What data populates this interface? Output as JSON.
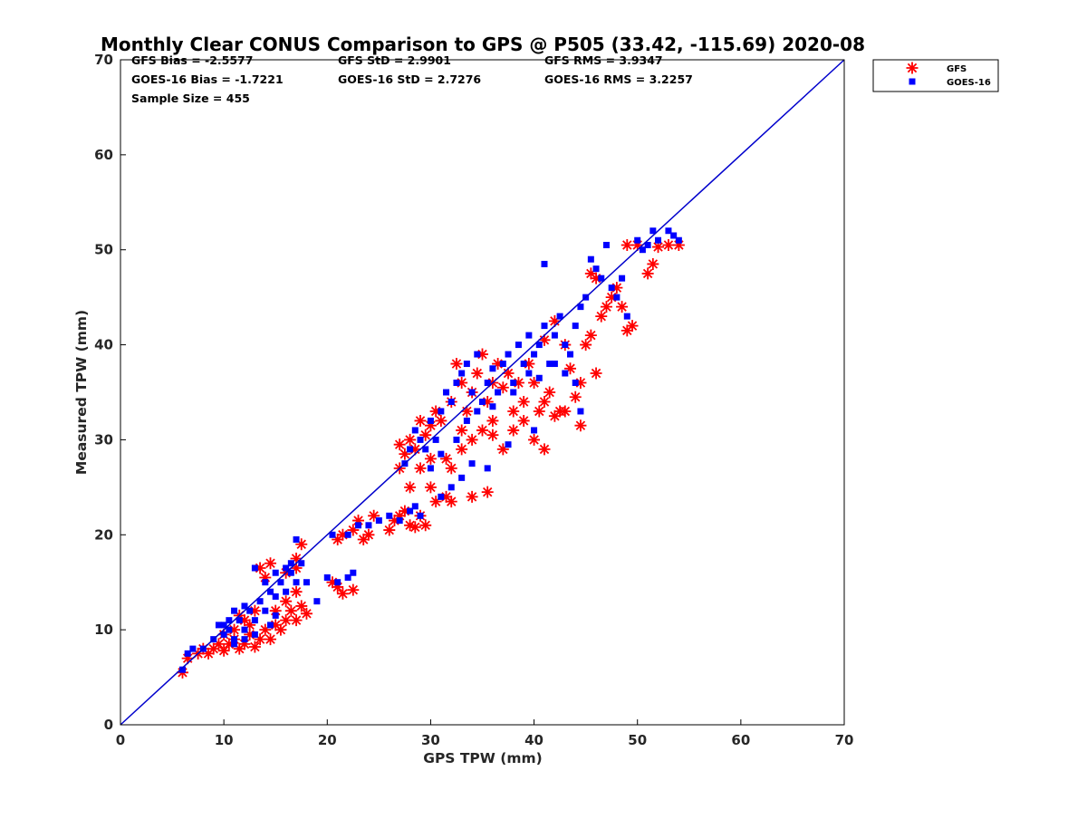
{
  "chart_data": {
    "type": "scatter",
    "title": "Monthly Clear CONUS Comparison to GPS @ P505 (33.42, -115.69) 2020-08",
    "xlabel": "GPS TPW (mm)",
    "ylabel": "Measured TPW (mm)",
    "xlim": [
      0,
      70
    ],
    "ylim": [
      0,
      70
    ],
    "xticks": [
      "0",
      "10",
      "20",
      "30",
      "40",
      "50",
      "60",
      "70"
    ],
    "yticks": [
      "0",
      "10",
      "20",
      "30",
      "40",
      "50",
      "60",
      "70"
    ],
    "grid": false,
    "legend_position": "top-right",
    "stats": {
      "gfs_bias": "GFS Bias = -2.5577",
      "goes_bias": "GOES-16 Bias = -1.7221",
      "sample_size": "Sample Size = 455",
      "gfs_std": "GFS StD = 2.9901",
      "goes_std": "GOES-16 StD = 2.7276",
      "gfs_rms": "GFS RMS = 3.9347",
      "goes_rms": "GOES-16 RMS = 3.2257"
    },
    "reference_line": {
      "x": [
        0,
        70
      ],
      "y": [
        0,
        70
      ],
      "color": "#0000cc"
    },
    "series": [
      {
        "name": "GFS",
        "marker": "asterisk",
        "color": "#ff0000",
        "points": [
          [
            6,
            5.5
          ],
          [
            6.5,
            7
          ],
          [
            7.5,
            7.5
          ],
          [
            8,
            8
          ],
          [
            8.5,
            7.5
          ],
          [
            9,
            8
          ],
          [
            9.5,
            8.5
          ],
          [
            10,
            7.8
          ],
          [
            10.5,
            8.5
          ],
          [
            11,
            9
          ],
          [
            11.5,
            8
          ],
          [
            12,
            8.5
          ],
          [
            12.5,
            9.5
          ],
          [
            13,
            8.2
          ],
          [
            13.5,
            9
          ],
          [
            14,
            10
          ],
          [
            14.5,
            9
          ],
          [
            15,
            10.5
          ],
          [
            15.5,
            10
          ],
          [
            16,
            11
          ],
          [
            16.5,
            12
          ],
          [
            17,
            11
          ],
          [
            17.5,
            12.5
          ],
          [
            18,
            11.7
          ],
          [
            16,
            13
          ],
          [
            17,
            14
          ],
          [
            14,
            15.5
          ],
          [
            13.5,
            16.5
          ],
          [
            14.5,
            17
          ],
          [
            16,
            16
          ],
          [
            17,
            17.5
          ],
          [
            17.5,
            19
          ],
          [
            17,
            16.5
          ],
          [
            12,
            11
          ],
          [
            11,
            10
          ],
          [
            12.5,
            10.5
          ],
          [
            13,
            12
          ],
          [
            10,
            9.5
          ],
          [
            11.5,
            11.5
          ],
          [
            15,
            12
          ],
          [
            20.5,
            15
          ],
          [
            21,
            14.5
          ],
          [
            21.5,
            13.8
          ],
          [
            22.5,
            14.2
          ],
          [
            21,
            19.5
          ],
          [
            21.5,
            20
          ],
          [
            22.5,
            20.5
          ],
          [
            23,
            21.5
          ],
          [
            23.5,
            19.5
          ],
          [
            24,
            20
          ],
          [
            24.5,
            22
          ],
          [
            26,
            20.5
          ],
          [
            26.5,
            21.5
          ],
          [
            27,
            22
          ],
          [
            27.5,
            22.5
          ],
          [
            28,
            21
          ],
          [
            28.5,
            20.8
          ],
          [
            29,
            22
          ],
          [
            29.5,
            21
          ],
          [
            27,
            27
          ],
          [
            27.5,
            28.5
          ],
          [
            28,
            30
          ],
          [
            28.5,
            29
          ],
          [
            29,
            32
          ],
          [
            29.5,
            30.5
          ],
          [
            30,
            28
          ],
          [
            30,
            31.5
          ],
          [
            30.5,
            33
          ],
          [
            31,
            32
          ],
          [
            31.5,
            28
          ],
          [
            32,
            27
          ],
          [
            32,
            34
          ],
          [
            32.5,
            38
          ],
          [
            33,
            36
          ],
          [
            33.5,
            33
          ],
          [
            34,
            35
          ],
          [
            34.5,
            37
          ],
          [
            35,
            39
          ],
          [
            35.5,
            34
          ],
          [
            36,
            36
          ],
          [
            36.5,
            38
          ],
          [
            37,
            35.5
          ],
          [
            37.5,
            37
          ],
          [
            38,
            33
          ],
          [
            38.5,
            36
          ],
          [
            39,
            34
          ],
          [
            39.5,
            38
          ],
          [
            40,
            36
          ],
          [
            40.5,
            33
          ],
          [
            41,
            40.5
          ],
          [
            41.5,
            35
          ],
          [
            42,
            42.5
          ],
          [
            42.5,
            33
          ],
          [
            43,
            40
          ],
          [
            43.5,
            37.5
          ],
          [
            44,
            34.5
          ],
          [
            44.5,
            36
          ],
          [
            45,
            40
          ],
          [
            45.5,
            41
          ],
          [
            46,
            37
          ],
          [
            46.5,
            43
          ],
          [
            47,
            44
          ],
          [
            47.5,
            45
          ],
          [
            48,
            46
          ],
          [
            48.5,
            44
          ],
          [
            49,
            41.5
          ],
          [
            49.5,
            42
          ],
          [
            49,
            50.5
          ],
          [
            50,
            50.5
          ],
          [
            51,
            47.5
          ],
          [
            51.5,
            48.5
          ],
          [
            52,
            50.3
          ],
          [
            53,
            50.5
          ],
          [
            54,
            50.5
          ],
          [
            45.5,
            47.5
          ],
          [
            46,
            47
          ],
          [
            30.5,
            23.5
          ],
          [
            31.5,
            24
          ],
          [
            32,
            23.5
          ],
          [
            34,
            24
          ],
          [
            35.5,
            24.5
          ],
          [
            33,
            29
          ],
          [
            34,
            30
          ],
          [
            35,
            31
          ],
          [
            36,
            30.5
          ],
          [
            37,
            29
          ],
          [
            38,
            31
          ],
          [
            40,
            30
          ],
          [
            41,
            29
          ],
          [
            42,
            32.5
          ],
          [
            44.5,
            31.5
          ],
          [
            28,
            25
          ],
          [
            29,
            27
          ],
          [
            30,
            25
          ],
          [
            27,
            29.5
          ],
          [
            33,
            31
          ],
          [
            36,
            32
          ],
          [
            39,
            32
          ],
          [
            43,
            33
          ],
          [
            41,
            34
          ]
        ]
      },
      {
        "name": "GOES-16",
        "marker": "square",
        "color": "#0000ff",
        "points": [
          [
            6,
            5.8
          ],
          [
            6.5,
            7.5
          ],
          [
            7,
            8
          ],
          [
            8,
            8
          ],
          [
            9,
            9
          ],
          [
            9.5,
            10.5
          ],
          [
            10,
            9.5
          ],
          [
            10.5,
            10
          ],
          [
            11,
            9
          ],
          [
            11.5,
            11
          ],
          [
            12,
            10
          ],
          [
            12.5,
            12
          ],
          [
            13,
            11
          ],
          [
            13.5,
            13
          ],
          [
            14,
            12
          ],
          [
            14.5,
            14
          ],
          [
            15,
            13.5
          ],
          [
            15.5,
            15
          ],
          [
            16,
            14
          ],
          [
            16.5,
            16
          ],
          [
            17,
            15
          ],
          [
            17.5,
            17
          ],
          [
            13,
            16.5
          ],
          [
            14,
            15
          ],
          [
            15,
            16
          ],
          [
            16,
            16.5
          ],
          [
            17,
            19.5
          ],
          [
            16.5,
            17
          ],
          [
            11,
            12
          ],
          [
            12,
            12.5
          ],
          [
            10.5,
            11
          ],
          [
            18,
            15
          ],
          [
            19,
            13
          ],
          [
            20,
            15.5
          ],
          [
            21,
            15
          ],
          [
            22,
            15.5
          ],
          [
            22.5,
            16
          ],
          [
            20.5,
            20
          ],
          [
            22,
            20
          ],
          [
            23,
            21
          ],
          [
            24,
            21
          ],
          [
            25,
            21.5
          ],
          [
            26,
            22
          ],
          [
            27,
            21.5
          ],
          [
            28,
            22.5
          ],
          [
            28.5,
            23
          ],
          [
            29,
            22
          ],
          [
            27.5,
            27.5
          ],
          [
            28,
            29
          ],
          [
            28.5,
            31
          ],
          [
            29,
            30
          ],
          [
            29.5,
            29
          ],
          [
            30,
            32
          ],
          [
            30.5,
            30
          ],
          [
            31,
            33
          ],
          [
            31.5,
            35
          ],
          [
            32,
            34
          ],
          [
            32.5,
            36
          ],
          [
            33,
            37
          ],
          [
            33.5,
            38
          ],
          [
            34,
            35
          ],
          [
            34.5,
            39
          ],
          [
            35,
            34
          ],
          [
            35.5,
            36
          ],
          [
            36,
            37.5
          ],
          [
            36.5,
            35
          ],
          [
            37,
            38
          ],
          [
            37.5,
            39
          ],
          [
            38,
            36
          ],
          [
            38.5,
            40
          ],
          [
            39,
            38
          ],
          [
            39.5,
            41
          ],
          [
            40,
            39
          ],
          [
            40.5,
            40
          ],
          [
            41,
            42
          ],
          [
            41.5,
            38
          ],
          [
            42,
            41
          ],
          [
            42.5,
            43
          ],
          [
            43,
            40
          ],
          [
            43.5,
            39
          ],
          [
            44,
            42
          ],
          [
            44.5,
            44
          ],
          [
            45,
            45
          ],
          [
            45.5,
            49
          ],
          [
            46,
            48
          ],
          [
            46.5,
            47
          ],
          [
            47,
            50.5
          ],
          [
            47.5,
            46
          ],
          [
            48,
            45
          ],
          [
            48.5,
            47
          ],
          [
            49,
            43
          ],
          [
            50,
            51
          ],
          [
            50.5,
            50
          ],
          [
            51,
            50.5
          ],
          [
            51.5,
            52
          ],
          [
            52,
            51
          ],
          [
            53,
            52
          ],
          [
            53.5,
            51.5
          ],
          [
            54,
            51
          ],
          [
            41,
            48.5
          ],
          [
            35.5,
            27
          ],
          [
            34,
            27.5
          ],
          [
            33,
            26
          ],
          [
            32,
            25
          ],
          [
            31,
            24
          ],
          [
            37.5,
            29.5
          ],
          [
            40,
            31
          ],
          [
            43,
            37
          ],
          [
            44,
            36
          ],
          [
            44.5,
            33
          ],
          [
            30,
            27
          ],
          [
            31,
            28.5
          ],
          [
            32.5,
            30
          ],
          [
            33.5,
            32
          ],
          [
            34.5,
            33
          ],
          [
            36,
            33.5
          ],
          [
            38,
            35
          ],
          [
            39.5,
            37
          ],
          [
            40.5,
            36.5
          ],
          [
            42,
            38
          ],
          [
            10,
            10.5
          ],
          [
            11,
            8.5
          ],
          [
            13,
            9.5
          ],
          [
            14.5,
            10.5
          ],
          [
            12,
            9
          ],
          [
            15,
            11.5
          ]
        ]
      }
    ]
  }
}
